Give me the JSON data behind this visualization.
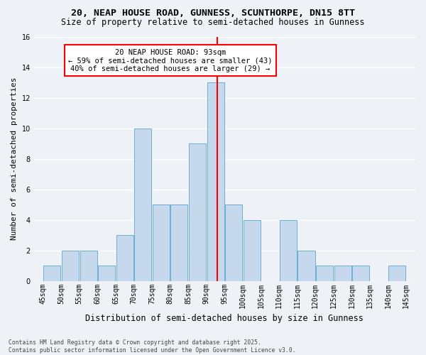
{
  "title_line1": "20, NEAP HOUSE ROAD, GUNNESS, SCUNTHORPE, DN15 8TT",
  "title_line2": "Size of property relative to semi-detached houses in Gunness",
  "xlabel": "Distribution of semi-detached houses by size in Gunness",
  "ylabel": "Number of semi-detached properties",
  "footnote": "Contains HM Land Registry data © Crown copyright and database right 2025.\nContains public sector information licensed under the Open Government Licence v3.0.",
  "bar_bins_left": [
    45,
    50,
    55,
    60,
    65,
    70,
    75,
    80,
    85,
    90,
    95,
    100,
    105,
    110,
    115,
    120,
    125,
    130,
    135,
    140
  ],
  "bar_heights": [
    1,
    2,
    2,
    1,
    3,
    10,
    5,
    5,
    9,
    13,
    5,
    4,
    0,
    4,
    2,
    1,
    1,
    1,
    0,
    1
  ],
  "bar_color": "#c6d9ec",
  "bar_edge_color": "#6aaed6",
  "property_value": 93,
  "property_label": "20 NEAP HOUSE ROAD: 93sqm",
  "pct_smaller": 59,
  "count_smaller": 43,
  "pct_larger": 40,
  "count_larger": 29,
  "vline_color": "red",
  "ylim": [
    0,
    16
  ],
  "yticks": [
    0,
    2,
    4,
    6,
    8,
    10,
    12,
    14,
    16
  ],
  "xlim_left": 42.5,
  "xlim_right": 147.5,
  "bin_width": 5,
  "bg_color": "#eef2f7",
  "grid_color": "#ffffff",
  "title_fontsize": 9.5,
  "subtitle_fontsize": 8.5,
  "ylabel_fontsize": 8,
  "xlabel_fontsize": 8.5,
  "tick_fontsize": 7,
  "annotation_fontsize": 7.5,
  "footnote_fontsize": 5.8
}
